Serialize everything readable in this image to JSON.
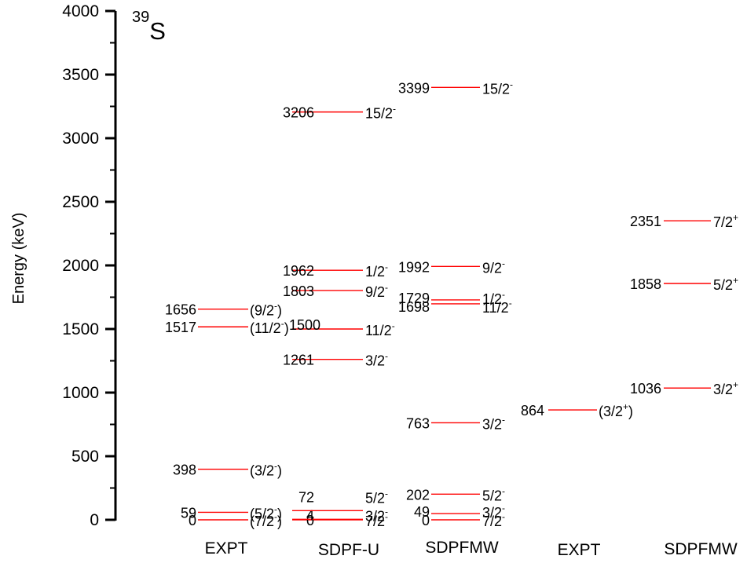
{
  "chart_data": {
    "type": "level_scheme",
    "title": "S",
    "title_superscript": "39",
    "ylabel": "Energy (keV)",
    "ylim": [
      0,
      4000
    ],
    "yticks": [
      "0",
      "500",
      "1000",
      "1500",
      "2000",
      "2500",
      "3000",
      "3500",
      "4000"
    ],
    "line_color": "#ff0000",
    "columns": [
      {
        "name": "EXPT",
        "levels": [
          {
            "energy": 0,
            "label": "0",
            "spin": "(7/2",
            "parity": "-",
            "close": ")"
          },
          {
            "energy": 59,
            "label": "59",
            "spin": "(5/2",
            "parity": "-",
            "close": ")"
          },
          {
            "energy": 398,
            "label": "398",
            "spin": "(3/2",
            "parity": "-",
            "close": ")"
          },
          {
            "energy": 1517,
            "label": "1517",
            "spin": "(11/2",
            "parity": "-",
            "close": ")"
          },
          {
            "energy": 1656,
            "label": "1656",
            "spin": "(9/2",
            "parity": "-",
            "close": ")"
          }
        ]
      },
      {
        "name": "SDPF-U",
        "levels": [
          {
            "energy": 0,
            "label": "0",
            "spin": "7/2",
            "parity": "-",
            "close": ""
          },
          {
            "energy": 4,
            "label": "4",
            "spin": "3/2",
            "parity": "-",
            "close": ""
          },
          {
            "energy": 72,
            "label": "72",
            "spin": "5/2",
            "parity": "-",
            "close": ""
          },
          {
            "energy": 1261,
            "label": "1261",
            "spin": "3/2",
            "parity": "-",
            "close": ""
          },
          {
            "energy": 1500,
            "label": "1500",
            "spin": "11/2",
            "parity": "-",
            "close": ""
          },
          {
            "energy": 1803,
            "label": "1803",
            "spin": "9/2",
            "parity": "-",
            "close": ""
          },
          {
            "energy": 1962,
            "label": "1962",
            "spin": "1/2",
            "parity": "-",
            "close": ""
          },
          {
            "energy": 3206,
            "label": "3206",
            "spin": "15/2",
            "parity": "-",
            "close": ""
          }
        ]
      },
      {
        "name": "SDPFMW",
        "levels": [
          {
            "energy": 0,
            "label": "0",
            "spin": "7/2",
            "parity": "-",
            "close": ""
          },
          {
            "energy": 49,
            "label": "49",
            "spin": "3/2",
            "parity": "-",
            "close": ""
          },
          {
            "energy": 202,
            "label": "202",
            "spin": "5/2",
            "parity": "-",
            "close": ""
          },
          {
            "energy": 763,
            "label": "763",
            "spin": "3/2",
            "parity": "-",
            "close": ""
          },
          {
            "energy": 1698,
            "label": "1698",
            "spin": "11/2",
            "parity": "-",
            "close": ""
          },
          {
            "energy": 1729,
            "label": "1729",
            "spin": "1/2",
            "parity": "-",
            "close": ""
          },
          {
            "energy": 1992,
            "label": "1992",
            "spin": "9/2",
            "parity": "-",
            "close": ""
          },
          {
            "energy": 3399,
            "label": "3399",
            "spin": "15/2",
            "parity": "-",
            "close": ""
          }
        ]
      },
      {
        "name": "EXPT",
        "levels": [
          {
            "energy": 864,
            "label": "864",
            "spin": "(3/2",
            "parity": "+",
            "close": ")"
          }
        ]
      },
      {
        "name": "SDPFMW",
        "levels": [
          {
            "energy": 1036,
            "label": "1036",
            "spin": "3/2",
            "parity": "+",
            "close": ""
          },
          {
            "energy": 1858,
            "label": "1858",
            "spin": "5/2",
            "parity": "+",
            "close": ""
          },
          {
            "energy": 2351,
            "label": "2351",
            "spin": "7/2",
            "parity": "+",
            "close": ""
          }
        ]
      }
    ]
  }
}
